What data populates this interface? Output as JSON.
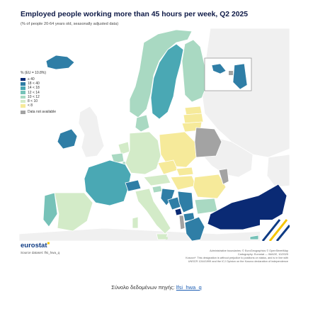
{
  "title": "Employed people working more than 45 hours per week, Q2 2025",
  "subtitle": "(% of people 20-64 years old, seasonally adjusted data)",
  "legend": {
    "title": "% (EU = 10.8%)",
    "classes": [
      {
        "label": "≥ 40",
        "color": "#0a2a74"
      },
      {
        "label": "18   < 40",
        "color": "#2f7ea6"
      },
      {
        "label": "14   < 18",
        "color": "#4aa8b4"
      },
      {
        "label": "12   < 14",
        "color": "#76c2b8"
      },
      {
        "label": "10   < 12",
        "color": "#a9d9c2"
      },
      {
        "label": "8   < 10",
        "color": "#d3ebc8"
      },
      {
        "label": "< 8",
        "color": "#f6ea9a"
      }
    ],
    "na_label": "Data not available",
    "na_color": "#a3a3a3"
  },
  "logo": {
    "text": "eurostat",
    "star": "■"
  },
  "source_dataset": "Source dataset: lfsi_hwa_q",
  "credits": {
    "line1": "Administrative boundaries: © EuroGeographics © OpenStreetMap",
    "line2": "Cartography: Eurostat — IMAGE, 10/2025",
    "line3": "Kosovo*: This designation is without prejudice to positions on status, and is in line with",
    "line4": "UNSCR 1244/1999 and the ICJ Opinion on the Kosovo declaration of independence"
  },
  "footer": {
    "prefix": "Σύνολο δεδομένων πηγής: ",
    "link": "lfsi_hwa_q"
  },
  "colors": {
    "sea": "#ffffff",
    "non_eu_land": "#f0f0f0",
    "border": "#ffffff",
    "frame": "#9a9a9a"
  }
}
